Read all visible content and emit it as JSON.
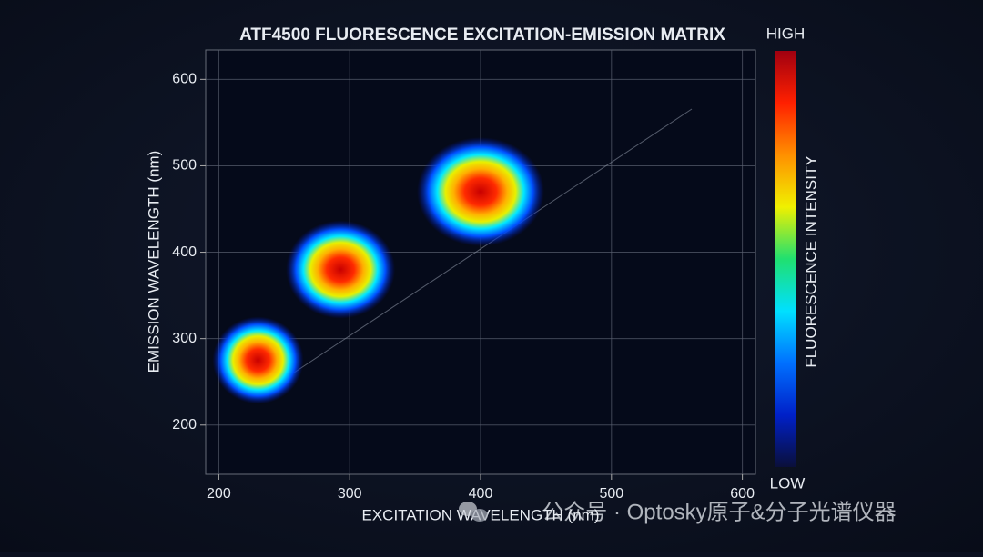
{
  "chart_data": {
    "type": "eem",
    "title": "ATF4500 FLUORESCENCE EXCITATION-EMISSION MATRIX",
    "x_label": "EXCITATION WAVELENGTH (nm)",
    "y_label": "EMISSION WAVELENGTH (nm)",
    "colorbar": {
      "label": "FLUORESCENCE INTENSITY",
      "high": "HIGH",
      "low": "LOW",
      "colors": [
        "#0a0f3a",
        "#0020c8",
        "#0070ff",
        "#00e0ff",
        "#20e070",
        "#f0f000",
        "#ff9000",
        "#ff2000",
        "#a00010"
      ]
    },
    "peaks": [
      {
        "ex": 230,
        "em": 275
      },
      {
        "ex": 293,
        "em": 380
      },
      {
        "ex": 400,
        "em": 470
      }
    ],
    "xlim": [
      190,
      610
    ],
    "ylim": [
      143,
      634
    ],
    "xticks": [
      200,
      300,
      400,
      500,
      600
    ],
    "yticks": [
      200,
      300,
      400,
      500,
      600
    ],
    "grid": true
  },
  "watermark": "公众号 · Optosky原子&分子光谱仪器"
}
